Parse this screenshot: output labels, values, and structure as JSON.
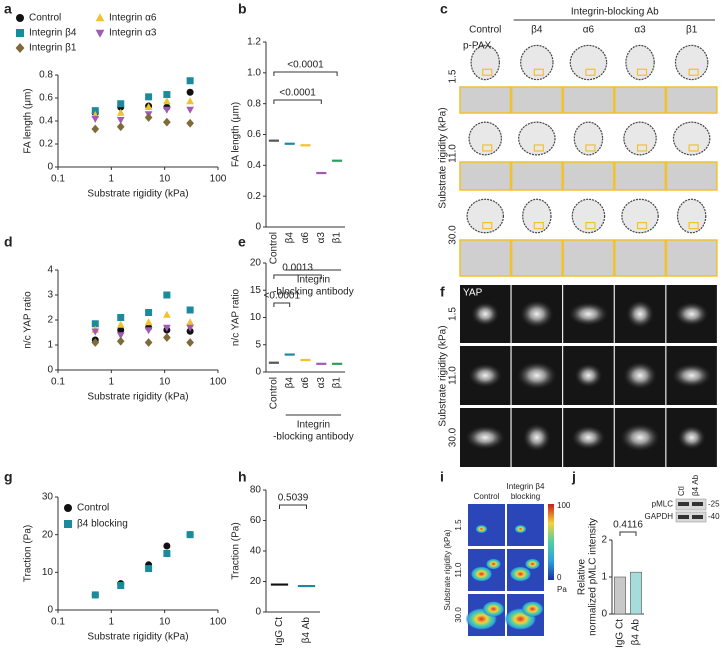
{
  "chart_data": [
    {
      "panel": "a",
      "type": "scatter",
      "xscale": "log",
      "x": [
        0.5,
        1.5,
        5,
        11,
        30
      ],
      "xlim": [
        0.1,
        100
      ],
      "xticks": [
        0.1,
        1,
        10,
        100
      ],
      "ylim": [
        0,
        0.8
      ],
      "yticks": [
        0,
        0.2,
        0.4,
        0.6,
        0.8
      ],
      "xlabel": "Substrate rigidity (kPa)",
      "ylabel": "FA length (μm)",
      "legend": "top",
      "series": [
        {
          "name": "Control",
          "color": "#111111",
          "marker": "circle",
          "values": [
            0.47,
            0.52,
            0.53,
            0.52,
            0.65
          ]
        },
        {
          "name": "Integrin β4",
          "color": "#1b8a9c",
          "marker": "square",
          "values": [
            0.49,
            0.55,
            0.61,
            0.63,
            0.75
          ]
        },
        {
          "name": "Integrin α6",
          "color": "#f2c12e",
          "marker": "triangle-up",
          "values": [
            0.45,
            0.47,
            0.52,
            0.57,
            0.57
          ]
        },
        {
          "name": "Integrin α3",
          "color": "#a05bb5",
          "marker": "triangle-down",
          "values": [
            0.42,
            0.41,
            0.46,
            0.5,
            0.5
          ]
        },
        {
          "name": "Integrin β1",
          "color": "#7d6b3a",
          "marker": "diamond",
          "values": [
            0.33,
            0.35,
            0.43,
            0.39,
            0.38
          ]
        }
      ]
    },
    {
      "panel": "b",
      "type": "dot",
      "categories": [
        "Control",
        "β4",
        "α6",
        "α3",
        "β1"
      ],
      "colors": [
        "#555555",
        "#1b8a9c",
        "#f2c12e",
        "#a05bb5",
        "#2e9e5b"
      ],
      "values": [
        0.56,
        0.54,
        0.53,
        0.35,
        0.43
      ],
      "ylim": [
        0,
        1.2
      ],
      "yticks": [
        0,
        0.2,
        0.4,
        0.6,
        0.8,
        {
          "value": 1,
          "label": "1.0"
        },
        1.2
      ],
      "ylabel": "FA length (μm)",
      "xlabel": [
        "Integrin",
        "-blocking antibody"
      ],
      "annotations": [
        "<0.0001",
        "<0.0001"
      ]
    },
    {
      "panel": "d",
      "type": "scatter",
      "xscale": "log",
      "x": [
        0.5,
        1.5,
        5,
        11,
        30
      ],
      "xlim": [
        0.1,
        100
      ],
      "xticks": [
        0.1,
        1,
        10,
        100
      ],
      "ylim": [
        0,
        4
      ],
      "yticks": [
        0,
        1,
        2,
        3,
        4
      ],
      "xlabel": "Substrate rigidity (kPa)",
      "ylabel": "n/c YAP ratio",
      "series": [
        {
          "color": "#111111",
          "marker": "circle",
          "values": [
            1.2,
            1.6,
            1.7,
            1.6,
            1.55
          ]
        },
        {
          "color": "#1b8a9c",
          "marker": "square",
          "values": [
            1.85,
            2.1,
            2.3,
            3.0,
            2.4
          ]
        },
        {
          "color": "#f2c12e",
          "marker": "triangle-up",
          "values": [
            1.6,
            1.8,
            1.9,
            2.2,
            1.9
          ]
        },
        {
          "color": "#a05bb5",
          "marker": "triangle-down",
          "values": [
            1.55,
            1.4,
            1.6,
            1.7,
            1.7
          ]
        },
        {
          "color": "#7d6b3a",
          "marker": "diamond",
          "values": [
            1.1,
            1.15,
            1.1,
            1.3,
            1.1
          ]
        }
      ]
    },
    {
      "panel": "e",
      "type": "dot",
      "categories": [
        "Control",
        "β4",
        "α6",
        "α3",
        "β1"
      ],
      "colors": [
        "#555555",
        "#1b8a9c",
        "#f2c12e",
        "#a05bb5",
        "#2e9e5b"
      ],
      "values": [
        1.7,
        3.2,
        2.2,
        1.5,
        1.5
      ],
      "ylim": [
        0,
        20
      ],
      "yticks": [
        0,
        5,
        10,
        15,
        20
      ],
      "ylabel": "n/c YAP ratio",
      "xlabel": [
        "Integrin",
        "-blocking antibody"
      ],
      "annotations": [
        "0.0013",
        "<0.0001"
      ]
    },
    {
      "panel": "g",
      "type": "scatter",
      "xscale": "log",
      "x": [
        0.5,
        1.5,
        5,
        11,
        30
      ],
      "xlim": [
        0.1,
        100
      ],
      "xticks": [
        0.1,
        1,
        10,
        100
      ],
      "ylim": [
        0,
        30
      ],
      "yticks": [
        0,
        10,
        20,
        30
      ],
      "xlabel": "Substrate rigidity (kPa)",
      "ylabel": "Traction (Pa)",
      "legend": "upper left",
      "series": [
        {
          "name": "Control",
          "color": "#111111",
          "marker": "circle",
          "values": [
            4,
            7,
            12,
            17,
            20
          ]
        },
        {
          "name": "β4 blocking",
          "color": "#1b8a9c",
          "marker": "square",
          "values": [
            4,
            6.5,
            11,
            15,
            20
          ]
        }
      ]
    },
    {
      "panel": "h",
      "type": "dot",
      "categories": [
        "IgG Ct",
        "β4 Ab"
      ],
      "colors": [
        "#111111",
        "#1b8a9c"
      ],
      "values": [
        18,
        17
      ],
      "ylim": [
        0,
        80
      ],
      "yticks": [
        0,
        20,
        40,
        60,
        80
      ],
      "ylabel": "Traction (Pa)",
      "annotations": [
        "0.5039"
      ]
    },
    {
      "panel": "j",
      "type": "bar",
      "categories": [
        "IgG Ct",
        "β4 Ab"
      ],
      "colors": [
        "#c8c8c8",
        "#a6dcdc"
      ],
      "values": [
        1,
        1.13
      ],
      "ylim": [
        0,
        2
      ],
      "yticks": [
        0,
        1,
        2
      ],
      "ylabel": [
        "Relative",
        "normalized pMLC intensity"
      ],
      "annotations": [
        "0.4116"
      ]
    }
  ],
  "panels": {
    "c": {
      "letter": "c",
      "title": "Integrin-blocking Ab",
      "columns": [
        "Control",
        "β4",
        "α6",
        "α3",
        "β1"
      ],
      "rows": [
        "1.5",
        "11.0",
        "30.0"
      ],
      "stain": "p-PAX",
      "ylabel": "Substrate rigidity (kPa)"
    },
    "f": {
      "letter": "f",
      "stain": "YAP",
      "rows": [
        "1.5",
        "11.0",
        "30.0"
      ],
      "ylabel": "Substrate rigidity (kPa)"
    },
    "i": {
      "letter": "i",
      "columns": [
        [
          "Control"
        ],
        [
          "Integrin β4",
          "blocking"
        ]
      ],
      "rows": [
        "1.5",
        "11.0",
        "30.0"
      ],
      "ylabel": "Substrate rigidity (kPa)",
      "colorbar": [
        100,
        0
      ],
      "unit": "Pa"
    },
    "blot": {
      "lanes": [
        "Ctl",
        "β4 Ab"
      ],
      "bands": [
        "pMLC",
        "GAPDH"
      ],
      "markers": [
        "-25",
        "-40"
      ]
    }
  }
}
